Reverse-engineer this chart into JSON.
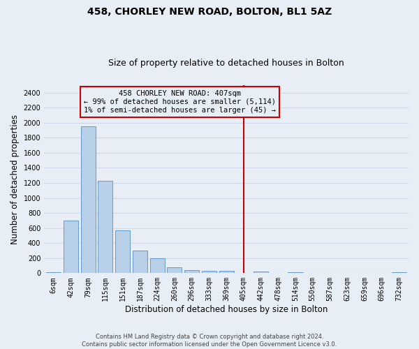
{
  "title": "458, CHORLEY NEW ROAD, BOLTON, BL1 5AZ",
  "subtitle": "Size of property relative to detached houses in Bolton",
  "xlabel": "Distribution of detached houses by size in Bolton",
  "ylabel": "Number of detached properties",
  "footer_line1": "Contains HM Land Registry data © Crown copyright and database right 2024.",
  "footer_line2": "Contains public sector information licensed under the Open Government Licence v3.0.",
  "annotation_line1": "458 CHORLEY NEW ROAD: 407sqm",
  "annotation_line2": "← 99% of detached houses are smaller (5,114)",
  "annotation_line3": "1% of semi-detached houses are larger (45) →",
  "bar_labels": [
    "6sqm",
    "42sqm",
    "79sqm",
    "115sqm",
    "151sqm",
    "187sqm",
    "224sqm",
    "260sqm",
    "296sqm",
    "333sqm",
    "369sqm",
    "405sqm",
    "442sqm",
    "478sqm",
    "514sqm",
    "550sqm",
    "587sqm",
    "623sqm",
    "659sqm",
    "696sqm",
    "732sqm"
  ],
  "bar_values": [
    15,
    700,
    1950,
    1230,
    570,
    300,
    200,
    80,
    42,
    30,
    28,
    0,
    20,
    2,
    14,
    2,
    2,
    2,
    2,
    2,
    14
  ],
  "bar_color": "#b8cfe8",
  "bar_edge_color": "#6699cc",
  "vline_pos": 11,
  "vline_color": "#cc0000",
  "annotation_box_edgecolor": "#cc0000",
  "ylim": [
    0,
    2500
  ],
  "yticks": [
    0,
    200,
    400,
    600,
    800,
    1000,
    1200,
    1400,
    1600,
    1800,
    2000,
    2200,
    2400
  ],
  "bg_color": "#e8eef6",
  "grid_color": "#d0d8e8",
  "title_fontsize": 10,
  "subtitle_fontsize": 9,
  "ylabel_fontsize": 8.5,
  "xlabel_fontsize": 8.5,
  "tick_fontsize": 7,
  "annotation_fontsize": 7.5,
  "figwidth": 6.0,
  "figheight": 5.0,
  "dpi": 100
}
